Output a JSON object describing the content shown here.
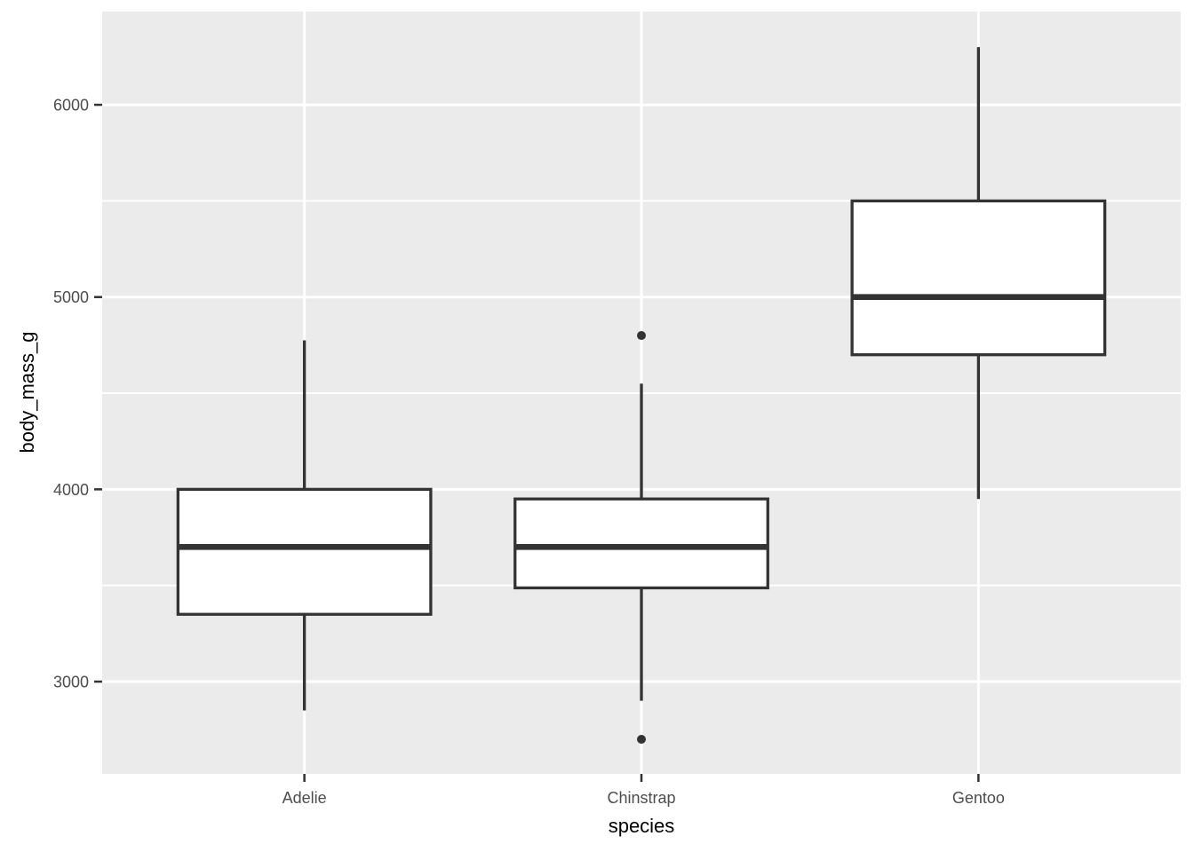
{
  "figure": {
    "background": "#FFFFFF",
    "panel_background": "#EBEBEB",
    "grid_color": "#FFFFFF",
    "box_stroke_color": "#333333",
    "box_fill_color": "#FFFFFF",
    "outlier_color": "#333333",
    "tick_mark_color": "#333333",
    "axis_text_color": "#4D4D4D",
    "axis_title_color": "#000000"
  },
  "chart_data": {
    "type": "boxplot",
    "title": "",
    "xlabel": "species",
    "ylabel": "body_mass_g",
    "legend": "none",
    "grid": true,
    "categories": [
      "Adelie",
      "Chinstrap",
      "Gentoo"
    ],
    "series": [
      {
        "name": "Adelie",
        "whisker_low": 2850,
        "q1": 3350,
        "median": 3700,
        "q3": 4000,
        "whisker_high": 4775,
        "outliers": []
      },
      {
        "name": "Chinstrap",
        "whisker_low": 2900,
        "q1": 3487.5,
        "median": 3700,
        "q3": 3950,
        "whisker_high": 4550,
        "outliers": [
          2700,
          4800
        ]
      },
      {
        "name": "Gentoo",
        "whisker_low": 3950,
        "q1": 4700,
        "median": 5000,
        "q3": 5500,
        "whisker_high": 6300,
        "outliers": []
      }
    ],
    "yticks": [
      3000,
      4000,
      5000,
      6000
    ],
    "ytick_labels": [
      "3000",
      "4000",
      "5000",
      "6000"
    ],
    "yticks_minor": [
      3500,
      4500,
      5500
    ],
    "ylim": [
      2520,
      6485
    ],
    "xlim": [
      0.4,
      3.6
    ],
    "x_positions": [
      1,
      2,
      3
    ],
    "box_width": 0.75
  }
}
